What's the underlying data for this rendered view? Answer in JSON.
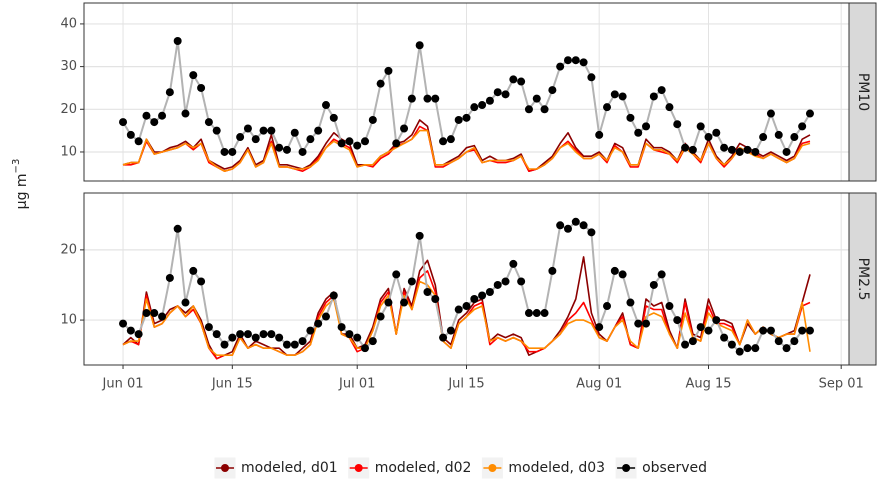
{
  "chart_data": {
    "type": "line",
    "ylabel": "μg m",
    "ylabel_sup": "−3",
    "x": [
      "Jun 01",
      "Jun 02",
      "Jun 03",
      "Jun 04",
      "Jun 05",
      "Jun 06",
      "Jun 07",
      "Jun 08",
      "Jun 09",
      "Jun 10",
      "Jun 11",
      "Jun 12",
      "Jun 13",
      "Jun 14",
      "Jun 15",
      "Jun 16",
      "Jun 17",
      "Jun 18",
      "Jun 19",
      "Jun 20",
      "Jun 21",
      "Jun 22",
      "Jun 23",
      "Jun 24",
      "Jun 25",
      "Jun 26",
      "Jun 27",
      "Jun 28",
      "Jun 29",
      "Jun 30",
      "Jul 01",
      "Jul 02",
      "Jul 03",
      "Jul 04",
      "Jul 05",
      "Jul 06",
      "Jul 07",
      "Jul 08",
      "Jul 09",
      "Jul 10",
      "Jul 11",
      "Jul 12",
      "Jul 13",
      "Jul 14",
      "Jul 15",
      "Jul 16",
      "Jul 17",
      "Jul 18",
      "Jul 19",
      "Jul 20",
      "Jul 21",
      "Jul 22",
      "Jul 23",
      "Jul 24",
      "Jul 25",
      "Jul 26",
      "Jul 27",
      "Jul 28",
      "Jul 29",
      "Jul 30",
      "Jul 31",
      "Aug 01",
      "Aug 02",
      "Aug 03",
      "Aug 04",
      "Aug 05",
      "Aug 06",
      "Aug 07",
      "Aug 08",
      "Aug 09",
      "Aug 10",
      "Aug 11",
      "Aug 12",
      "Aug 13",
      "Aug 14",
      "Aug 15",
      "Aug 16",
      "Aug 17",
      "Aug 18",
      "Aug 19",
      "Aug 20",
      "Aug 21",
      "Aug 22",
      "Aug 23",
      "Aug 24",
      "Aug 25",
      "Aug 26",
      "Aug 27",
      "Aug 28"
    ],
    "xlim": [
      "May 27",
      "Sep 02"
    ],
    "xticks": [
      "Jun 01",
      "Jun 15",
      "Jul 01",
      "Jul 15",
      "Aug 01",
      "Aug 15",
      "Sep 01"
    ],
    "grid": true,
    "legend": "bottom",
    "series": [
      {
        "name": "modeled, d01",
        "color": "#8b0000"
      },
      {
        "name": "modeled, d02",
        "color": "#ff0000"
      },
      {
        "name": "modeled, d03",
        "color": "#ff8c00"
      },
      {
        "name": "observed",
        "color": "#000000"
      }
    ],
    "facets": [
      {
        "label": "PM10",
        "ylim": [
          3.2,
          44.9
        ],
        "yticks": [
          10,
          20,
          30,
          40
        ],
        "values": [
          [
            7,
            7.5,
            7.5,
            13,
            10,
            10,
            11,
            11.5,
            12.5,
            11,
            13,
            8,
            7,
            6,
            6.5,
            8,
            11,
            7,
            8,
            14,
            7,
            7,
            6.5,
            6,
            7,
            9,
            12,
            14.5,
            13,
            12,
            7,
            7,
            7,
            9,
            10,
            12,
            12.5,
            14,
            17.5,
            16,
            7,
            7,
            8,
            9,
            11,
            11.5,
            8,
            9,
            8,
            8,
            8.5,
            9.5,
            5.5,
            6,
            7.5,
            9,
            12,
            14.5,
            11,
            9,
            9,
            10,
            8,
            12,
            11,
            7,
            7,
            13,
            11,
            11,
            10,
            8,
            12,
            10,
            8,
            13,
            9,
            7,
            9,
            12,
            11,
            10,
            9,
            10,
            9,
            8,
            9,
            13,
            14
          ],
          [
            7,
            7,
            7.5,
            12.5,
            9.5,
            10,
            10.5,
            11,
            12,
            10.5,
            12,
            7.5,
            6.5,
            5.5,
            6,
            7.5,
            10.5,
            6.5,
            7.5,
            12.5,
            6.5,
            6.5,
            6,
            5.5,
            6.5,
            8.5,
            11,
            13,
            12,
            11,
            6.5,
            7,
            6.5,
            8.5,
            9.5,
            11.5,
            12,
            13,
            16,
            15,
            6.5,
            6.5,
            7.5,
            8.5,
            10,
            10.5,
            7.5,
            8,
            7.5,
            7.5,
            8,
            9,
            5.5,
            6,
            7,
            8.5,
            11,
            12.5,
            10.5,
            8.5,
            8.5,
            9.5,
            7.5,
            11.5,
            10,
            6.5,
            6.5,
            12,
            10.5,
            10,
            9.5,
            7.5,
            11,
            9.5,
            7.5,
            12,
            8.5,
            6.5,
            8.5,
            11,
            10,
            9.5,
            8.5,
            9.5,
            8.5,
            7.5,
            8.5,
            12,
            12.5
          ],
          [
            7,
            7.5,
            7.5,
            13,
            9.5,
            10,
            10.5,
            11,
            12,
            11,
            12,
            8,
            6.5,
            5.5,
            6,
            7.5,
            10.5,
            6.5,
            7.5,
            12,
            6.5,
            6.5,
            6,
            6,
            6.5,
            8,
            11,
            12.5,
            11.5,
            10.5,
            6.5,
            7,
            7,
            9,
            10,
            11,
            12,
            13,
            15,
            15,
            7,
            7,
            7.5,
            8.5,
            10,
            11,
            7.5,
            8,
            8,
            8,
            8,
            9,
            6,
            6,
            7,
            8.5,
            11,
            12,
            10,
            8.5,
            8.5,
            9.5,
            8,
            11,
            10,
            7,
            7,
            12,
            10.5,
            10.5,
            9.5,
            8,
            11,
            9.5,
            8,
            12,
            8.5,
            7,
            8.5,
            11,
            10,
            9,
            8.5,
            9.5,
            8.5,
            7.5,
            8.5,
            11.5,
            12
          ],
          [
            17,
            14,
            12.5,
            18.5,
            17,
            18.5,
            24,
            36,
            19,
            28,
            25,
            17,
            15,
            10,
            10,
            13.5,
            15.5,
            13,
            15,
            15,
            11,
            10.5,
            14.5,
            10,
            13,
            15,
            21,
            18,
            12,
            12.5,
            11.5,
            12.5,
            17.5,
            26,
            29,
            12,
            15.5,
            22.5,
            35,
            22.5,
            22.5,
            12.5,
            13,
            17.5,
            18,
            20.5,
            21,
            22,
            24,
            23.5,
            27,
            26.5,
            20,
            22.5,
            20,
            24.5,
            30,
            31.5,
            31.5,
            31,
            27.5,
            14,
            20.5,
            23.5,
            23,
            18,
            14.5,
            16,
            23,
            24.5,
            20.5,
            16.5,
            11,
            10.5,
            16,
            13.5,
            14.5,
            11,
            10.5,
            10,
            10.5,
            10,
            13.5,
            19,
            14,
            10,
            13.5,
            16,
            19
          ]
        ]
      },
      {
        "label": "PM2.5",
        "ylim": [
          3.6,
          28.1
        ],
        "yticks": [
          10,
          20
        ],
        "values": [
          [
            6.5,
            7.5,
            6.5,
            14,
            9.5,
            10,
            11.5,
            12,
            11,
            12,
            10,
            6.5,
            4.5,
            5,
            5.5,
            8,
            6,
            7,
            6.5,
            6,
            6,
            5,
            5,
            6,
            7,
            11,
            13,
            14,
            8,
            8,
            6,
            6.5,
            9,
            13,
            14.5,
            8,
            14.5,
            12,
            17,
            18.5,
            15,
            7.5,
            6.5,
            10,
            11,
            12.5,
            13,
            7,
            8,
            7.5,
            8,
            7.5,
            5,
            5.5,
            6,
            7,
            8.5,
            10.5,
            13,
            19,
            11,
            8,
            7,
            9,
            11,
            6.5,
            6,
            13,
            12,
            12.5,
            8.5,
            6,
            13,
            8,
            7.5,
            13,
            10,
            10,
            9.5,
            6.5,
            9.5,
            8,
            9,
            8,
            7.5,
            8,
            8.5,
            12.5,
            16.5
          ],
          [
            6.5,
            7,
            6.5,
            13.5,
            9,
            9.5,
            11,
            12,
            10.5,
            11.5,
            9.5,
            6,
            4.5,
            5,
            5,
            7.5,
            6,
            6.5,
            6,
            6,
            5.5,
            5,
            5,
            5.5,
            6.5,
            10.5,
            12.5,
            13.5,
            8,
            7.5,
            5.5,
            6,
            8.5,
            12.5,
            14,
            8,
            14,
            11.5,
            16,
            17,
            14,
            7,
            6,
            9.5,
            10.5,
            12,
            12.5,
            6.5,
            7.5,
            7,
            7.5,
            7,
            5.5,
            5.5,
            6,
            7,
            8,
            10,
            11,
            12.5,
            10,
            7.5,
            7,
            9,
            10.5,
            6.5,
            6,
            12,
            11.5,
            11.5,
            8,
            6,
            12.5,
            7.5,
            7,
            12,
            9.5,
            9.5,
            9,
            6.5,
            10,
            8,
            9,
            8,
            7.5,
            8,
            8,
            12,
            12.5
          ],
          [
            6.5,
            7,
            7,
            13,
            9,
            9.5,
            11,
            12,
            10.5,
            12,
            9.5,
            6,
            5,
            5,
            5,
            7.5,
            6,
            6.5,
            6,
            6,
            5.5,
            5,
            5,
            5.5,
            6.5,
            10,
            12,
            13,
            8,
            7.5,
            6,
            6,
            8.5,
            12,
            13.5,
            8,
            13.5,
            11.5,
            15.5,
            15,
            13.5,
            7,
            6,
            9.5,
            10.5,
            11.5,
            12,
            7,
            7.5,
            7,
            7.5,
            7,
            6,
            6,
            6,
            7,
            8,
            9.5,
            10,
            10,
            9.5,
            7.5,
            7,
            9,
            10,
            7,
            6,
            10.5,
            11,
            10.5,
            8,
            6,
            11,
            7.5,
            7,
            11,
            9.5,
            9,
            8.5,
            6.5,
            10,
            8,
            9,
            8,
            7.5,
            8,
            8,
            12.5,
            5.5
          ],
          [
            9.5,
            8.5,
            8,
            11,
            11,
            10.5,
            16,
            23,
            12.5,
            17,
            15.5,
            9,
            8,
            6.5,
            7.5,
            8,
            8,
            7.5,
            8,
            8,
            7.5,
            6.5,
            6.5,
            7,
            8.5,
            9.5,
            10.5,
            13.5,
            9,
            8,
            7.5,
            6,
            7,
            10.5,
            12.5,
            16.5,
            12.5,
            15.5,
            22,
            14,
            13,
            7.5,
            8.5,
            11.5,
            12,
            13,
            13.5,
            14,
            15,
            15.5,
            18,
            15.5,
            11,
            11,
            11,
            17,
            23.5,
            23,
            24,
            23.5,
            22.5,
            9,
            12,
            17,
            16.5,
            12.5,
            9.5,
            9.5,
            15,
            16.5,
            12,
            10,
            6.5,
            7,
            9,
            8.5,
            10,
            7.5,
            6.5,
            5.5,
            6,
            6,
            8.5,
            8.5,
            7,
            6,
            7,
            8.5,
            8.5
          ]
        ]
      }
    ]
  }
}
